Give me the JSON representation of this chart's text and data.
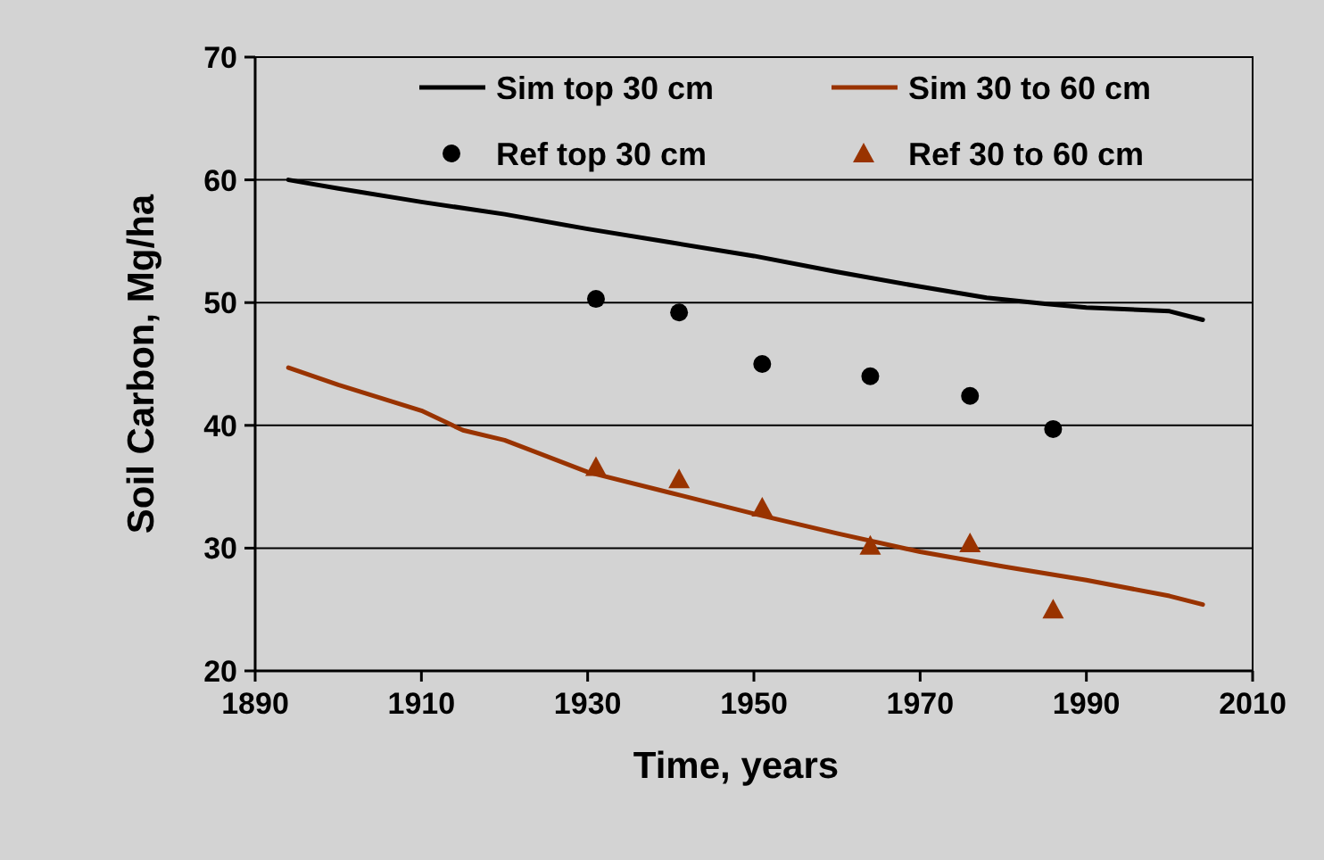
{
  "chart_data": {
    "type": "line",
    "xlabel": "Time, years",
    "ylabel": "Soil Carbon, Mg/ha",
    "xlim": [
      1890,
      2010
    ],
    "ylim": [
      20,
      70
    ],
    "xticks": [
      1890,
      1910,
      1930,
      1950,
      1970,
      1990,
      2010
    ],
    "yticks": [
      20,
      30,
      40,
      50,
      60,
      70
    ],
    "grid": "y",
    "legend": "top right",
    "series": [
      {
        "name": "Sim top 30 cm",
        "color": "#000000",
        "marker": "none",
        "x": [
          1894,
          1900,
          1910,
          1920,
          1930,
          1940,
          1950,
          1960,
          1970,
          1978,
          1985,
          1990,
          2000,
          2004
        ],
        "values": [
          60.0,
          59.3,
          58.2,
          57.2,
          56.0,
          54.9,
          53.8,
          52.5,
          51.3,
          50.4,
          49.9,
          49.6,
          49.3,
          48.6
        ]
      },
      {
        "name": "Sim 30 to 60 cm",
        "color": "#993300",
        "marker": "none",
        "x": [
          1894,
          1900,
          1910,
          1915,
          1920,
          1930,
          1940,
          1950,
          1960,
          1970,
          1980,
          1990,
          2000,
          2004
        ],
        "values": [
          44.7,
          43.3,
          41.2,
          39.6,
          38.8,
          36.2,
          34.5,
          32.8,
          31.2,
          29.7,
          28.5,
          27.4,
          26.1,
          25.4
        ]
      },
      {
        "name": "Ref top 30 cm",
        "type": "scatter",
        "color": "#000000",
        "marker": "circle",
        "x": [
          1931,
          1941,
          1951,
          1964,
          1976,
          1986
        ],
        "values": [
          50.3,
          49.2,
          45.0,
          44.0,
          42.4,
          39.7
        ]
      },
      {
        "name": "Ref 30 to 60 cm",
        "type": "scatter",
        "color": "#993300",
        "marker": "triangle",
        "x": [
          1931,
          1941,
          1951,
          1964,
          1976,
          1986
        ],
        "values": [
          36.6,
          35.6,
          33.3,
          30.2,
          30.4,
          25.0
        ]
      }
    ]
  }
}
